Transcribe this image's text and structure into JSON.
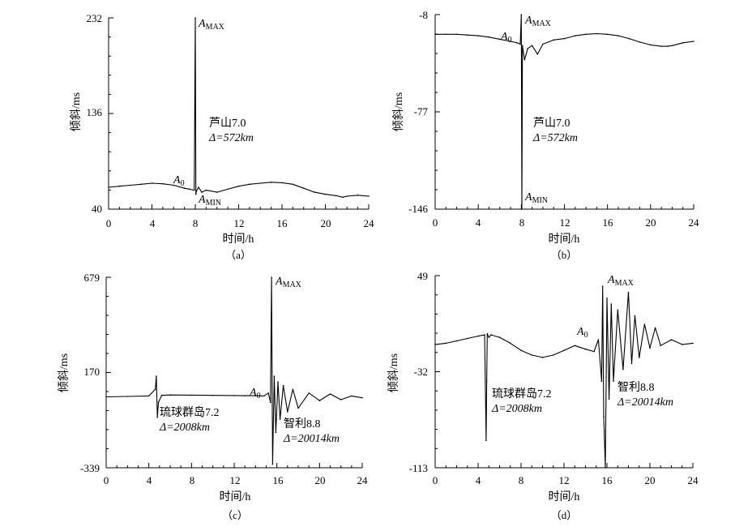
{
  "chart_data": [
    {
      "type": "line",
      "panel_label": "（a）",
      "xlabel": "时间/h",
      "ylabel": "倾斜/ms",
      "xlim": [
        0,
        24
      ],
      "ylim": [
        40,
        232
      ],
      "x_ticks": [
        0,
        4,
        8,
        12,
        16,
        20,
        24
      ],
      "y_ticks": [
        40,
        136,
        232
      ],
      "annotations": {
        "event": "芦山7.0",
        "distance": "Δ=572km",
        "amax_label": "AMAX",
        "amin_label": "AMIN",
        "a0_label": "A0"
      },
      "series": [
        {
          "x": [
            0,
            1,
            2,
            3,
            4,
            5,
            6,
            7,
            7.5,
            7.9,
            8.0,
            8.05,
            8.1,
            8.3,
            8.6,
            9,
            10,
            11,
            12,
            13,
            14,
            15,
            16,
            17,
            18,
            19,
            20,
            21,
            21.6,
            22,
            23,
            24
          ],
          "y": [
            62,
            63,
            64,
            65,
            66,
            65.5,
            64,
            61,
            60,
            59,
            232,
            55,
            58,
            62,
            57,
            59,
            57,
            60,
            63,
            65,
            66,
            67,
            66.5,
            65,
            61,
            57,
            55,
            53.5,
            52,
            53,
            54,
            53
          ]
        }
      ]
    },
    {
      "type": "line",
      "panel_label": "（b）",
      "xlabel": "时间/h",
      "ylabel": "倾斜/ms",
      "xlim": [
        0,
        24
      ],
      "ylim": [
        -146,
        -8
      ],
      "x_ticks": [
        0,
        4,
        8,
        12,
        16,
        20,
        24
      ],
      "y_ticks": [
        -146,
        -77,
        -8
      ],
      "annotations": {
        "event": "芦山7.0",
        "distance": "Δ=572km",
        "amax_label": "AMAX",
        "amin_label": "AMIN",
        "a0_label": "A0"
      },
      "series": [
        {
          "x": [
            0,
            1,
            2,
            3,
            4,
            5,
            6,
            7,
            7.6,
            7.9,
            8.0,
            8.05,
            8.1,
            8.3,
            8.6,
            9,
            9.5,
            10,
            11,
            12,
            13,
            14,
            15,
            16,
            17,
            18,
            19,
            20,
            21,
            21.6,
            22,
            23,
            24
          ],
          "y": [
            -22,
            -22,
            -22,
            -22.5,
            -23,
            -24,
            -25.5,
            -27,
            -28,
            -29,
            -8,
            -146,
            -30,
            -40,
            -32,
            -30,
            -36,
            -29,
            -26,
            -25,
            -23,
            -22,
            -21.5,
            -22,
            -23,
            -25,
            -27.5,
            -29.5,
            -30.5,
            -30.5,
            -30,
            -28,
            -27
          ]
        }
      ]
    },
    {
      "type": "line",
      "panel_label": "（c）",
      "xlabel": "时间/h",
      "ylabel": "倾斜/ms",
      "xlim": [
        0,
        24
      ],
      "ylim": [
        -339,
        679
      ],
      "x_ticks": [
        0,
        4,
        8,
        12,
        16,
        20,
        24
      ],
      "y_ticks": [
        -339,
        170,
        679
      ],
      "annotations": {
        "event1": "琉球群岛7.2",
        "distance1": "Δ=2008km",
        "event2": "智利8.8",
        "distance2": "Δ=20014km",
        "amax_label": "AMAX",
        "a0_label": "A0"
      },
      "series": [
        {
          "x": [
            0,
            2,
            4,
            4.6,
            4.7,
            4.8,
            4.9,
            5.2,
            6,
            8,
            10,
            12,
            13,
            14,
            14.8,
            15.2,
            15.4,
            15.5,
            15.6,
            15.75,
            15.9,
            16.1,
            16.3,
            16.6,
            17,
            17.5,
            18,
            19,
            20,
            21,
            22,
            23,
            24
          ],
          "y": [
            40,
            42,
            45,
            80,
            150,
            -70,
            10,
            48,
            50,
            49,
            48,
            47,
            46,
            46,
            45,
            60,
            10,
            679,
            -320,
            150,
            -150,
            120,
            -80,
            100,
            -40,
            80,
            -20,
            60,
            20,
            55,
            25,
            45,
            35
          ]
        }
      ]
    },
    {
      "type": "line",
      "panel_label": "（d）",
      "xlabel": "时间/h",
      "ylabel": "倾斜/ms",
      "xlim": [
        0,
        24
      ],
      "ylim": [
        -113,
        49
      ],
      "x_ticks": [
        0,
        4,
        8,
        12,
        16,
        20,
        24
      ],
      "y_ticks": [
        -113,
        -32,
        49
      ],
      "annotations": {
        "event1": "琉球群岛7.2",
        "distance1": "Δ=2008km",
        "event2": "智利8.8",
        "distance2": "Δ=20014km",
        "amax_label": "AMAX",
        "a0_label": "A0"
      },
      "series": [
        {
          "x": [
            0,
            1,
            2,
            3,
            4,
            4.6,
            4.75,
            4.8,
            4.85,
            5,
            5.2,
            6,
            7,
            8,
            9,
            10,
            11,
            12,
            13,
            14,
            14.8,
            15.2,
            15.5,
            15.6,
            15.7,
            15.85,
            16,
            16.2,
            16.4,
            16.6,
            17,
            17.5,
            18,
            18.3,
            18.6,
            19,
            19.5,
            20,
            20.5,
            21,
            22,
            23,
            24
          ],
          "y": [
            -9,
            -8,
            -6,
            -4,
            -2,
            -1,
            -90,
            -40,
            0,
            -3,
            -1,
            -3,
            -8,
            -14,
            -18,
            -20,
            -18,
            -14,
            -10,
            -13,
            -15,
            -5,
            -40,
            40,
            -70,
            -113,
            30,
            -55,
            25,
            -40,
            20,
            -30,
            35,
            -25,
            15,
            -20,
            8,
            -12,
            5,
            -10,
            -5,
            -9,
            -8
          ]
        }
      ]
    }
  ]
}
